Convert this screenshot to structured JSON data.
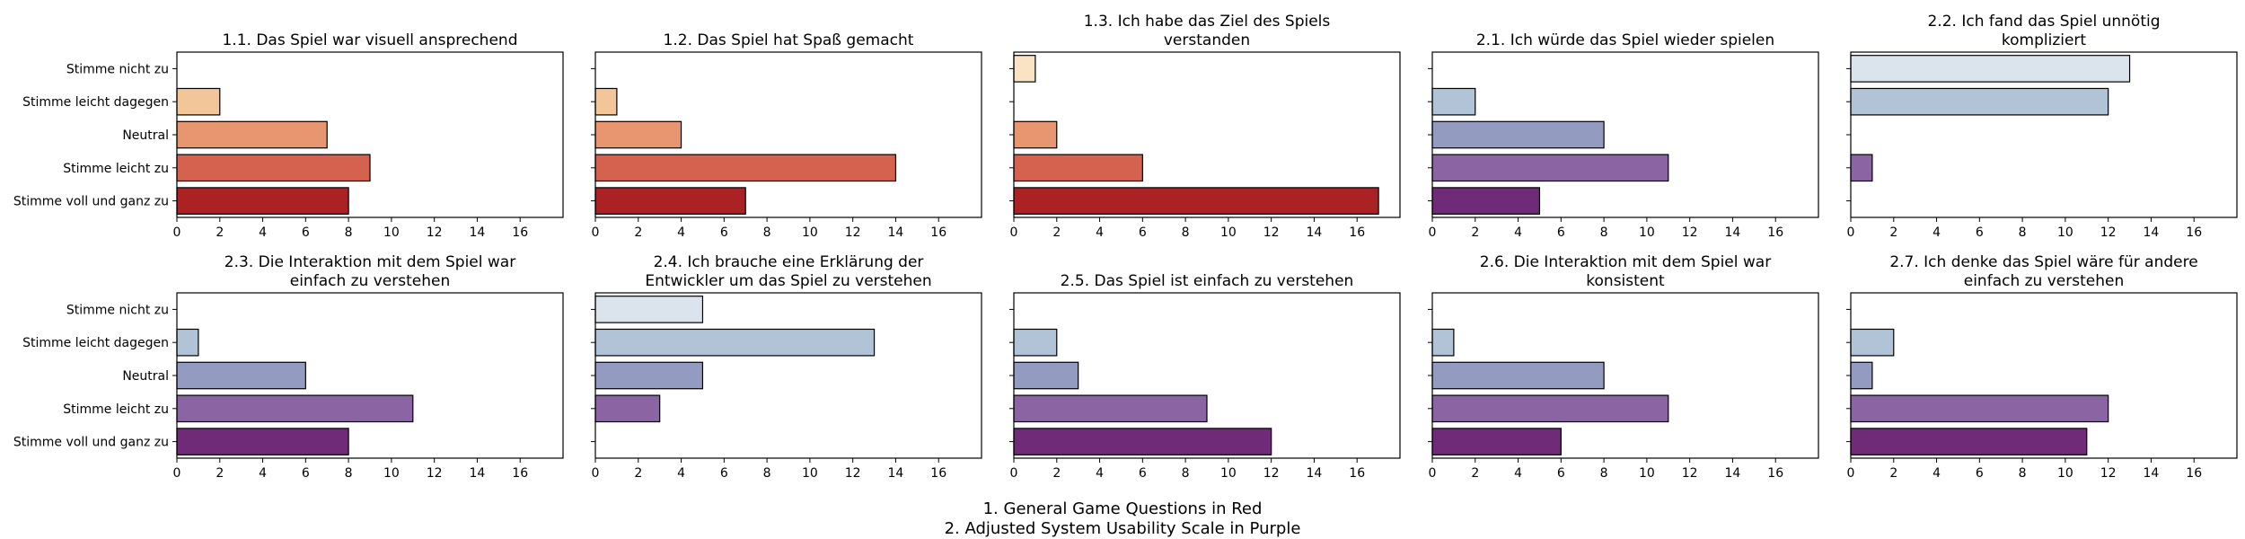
{
  "caption": {
    "line1": "1. General Game Questions in Red",
    "line2": "2. Adjusted System Usability Scale in Purple"
  },
  "chart_data": [
    {
      "type": "bar",
      "orientation": "horizontal",
      "title": "1.1. Das Spiel war visuell ansprechend",
      "categories": [
        "Stimme nicht zu",
        "Stimme leicht dagegen",
        "Neutral",
        "Stimme leicht zu",
        "Stimme voll und ganz zu"
      ],
      "values": [
        0,
        2,
        7,
        9,
        8
      ],
      "colors": [
        "#fae3c4",
        "#f3c69a",
        "#e8966f",
        "#d4624f",
        "#aa2224"
      ],
      "xlim": [
        0,
        18
      ],
      "xticks": [
        0,
        2,
        4,
        6,
        8,
        10,
        12,
        14,
        16
      ]
    },
    {
      "type": "bar",
      "orientation": "horizontal",
      "title": "1.2. Das Spiel hat Spaß gemacht",
      "categories": [
        "Stimme nicht zu",
        "Stimme leicht dagegen",
        "Neutral",
        "Stimme leicht zu",
        "Stimme voll und ganz zu"
      ],
      "values": [
        0,
        1,
        4,
        14,
        7
      ],
      "colors": [
        "#fae3c4",
        "#f3c69a",
        "#e8966f",
        "#d4624f",
        "#aa2224"
      ],
      "xlim": [
        0,
        18
      ],
      "xticks": [
        0,
        2,
        4,
        6,
        8,
        10,
        12,
        14,
        16
      ]
    },
    {
      "type": "bar",
      "orientation": "horizontal",
      "title": "1.3. Ich habe das Ziel des Spiels\nverstanden",
      "categories": [
        "Stimme nicht zu",
        "Stimme leicht dagegen",
        "Neutral",
        "Stimme leicht zu",
        "Stimme voll und ganz zu"
      ],
      "values": [
        1,
        0,
        2,
        6,
        17
      ],
      "colors": [
        "#fae3c4",
        "#f3c69a",
        "#e8966f",
        "#d4624f",
        "#aa2224"
      ],
      "xlim": [
        0,
        18
      ],
      "xticks": [
        0,
        2,
        4,
        6,
        8,
        10,
        12,
        14,
        16
      ]
    },
    {
      "type": "bar",
      "orientation": "horizontal",
      "title": "2.1. Ich würde das Spiel wieder spielen",
      "categories": [
        "Stimme nicht zu",
        "Stimme leicht dagegen",
        "Neutral",
        "Stimme leicht zu",
        "Stimme voll und ganz zu"
      ],
      "values": [
        0,
        2,
        8,
        11,
        5
      ],
      "colors": [
        "#dbe4ed",
        "#b1c4d7",
        "#949bc1",
        "#8a64a3",
        "#6f2a78"
      ],
      "xlim": [
        0,
        18
      ],
      "xticks": [
        0,
        2,
        4,
        6,
        8,
        10,
        12,
        14,
        16
      ]
    },
    {
      "type": "bar",
      "orientation": "horizontal",
      "title": "2.2. Ich fand das Spiel unnötig\nkompliziert",
      "categories": [
        "Stimme nicht zu",
        "Stimme leicht dagegen",
        "Neutral",
        "Stimme leicht zu",
        "Stimme voll und ganz zu"
      ],
      "values": [
        13,
        12,
        0,
        1,
        0
      ],
      "colors": [
        "#dbe4ed",
        "#b1c4d7",
        "#949bc1",
        "#8a64a3",
        "#6f2a78"
      ],
      "xlim": [
        0,
        18
      ],
      "xticks": [
        0,
        2,
        4,
        6,
        8,
        10,
        12,
        14,
        16
      ]
    },
    {
      "type": "bar",
      "orientation": "horizontal",
      "title": "2.3. Die Interaktion mit dem Spiel war\neinfach zu verstehen",
      "categories": [
        "Stimme nicht zu",
        "Stimme leicht dagegen",
        "Neutral",
        "Stimme leicht zu",
        "Stimme voll und ganz zu"
      ],
      "values": [
        0,
        1,
        6,
        11,
        8
      ],
      "colors": [
        "#dbe4ed",
        "#b1c4d7",
        "#949bc1",
        "#8a64a3",
        "#6f2a78"
      ],
      "xlim": [
        0,
        18
      ],
      "xticks": [
        0,
        2,
        4,
        6,
        8,
        10,
        12,
        14,
        16
      ]
    },
    {
      "type": "bar",
      "orientation": "horizontal",
      "title": "2.4. Ich brauche eine Erklärung der\nEntwickler um das Spiel zu verstehen",
      "categories": [
        "Stimme nicht zu",
        "Stimme leicht dagegen",
        "Neutral",
        "Stimme leicht zu",
        "Stimme voll und ganz zu"
      ],
      "values": [
        5,
        13,
        5,
        3,
        0
      ],
      "colors": [
        "#dbe4ed",
        "#b1c4d7",
        "#949bc1",
        "#8a64a3",
        "#6f2a78"
      ],
      "xlim": [
        0,
        18
      ],
      "xticks": [
        0,
        2,
        4,
        6,
        8,
        10,
        12,
        14,
        16
      ]
    },
    {
      "type": "bar",
      "orientation": "horizontal",
      "title": "2.5. Das Spiel ist einfach zu verstehen",
      "categories": [
        "Stimme nicht zu",
        "Stimme leicht dagegen",
        "Neutral",
        "Stimme leicht zu",
        "Stimme voll und ganz zu"
      ],
      "values": [
        0,
        2,
        3,
        9,
        12
      ],
      "colors": [
        "#dbe4ed",
        "#b1c4d7",
        "#949bc1",
        "#8a64a3",
        "#6f2a78"
      ],
      "xlim": [
        0,
        18
      ],
      "xticks": [
        0,
        2,
        4,
        6,
        8,
        10,
        12,
        14,
        16
      ]
    },
    {
      "type": "bar",
      "orientation": "horizontal",
      "title": "2.6. Die Interaktion mit dem Spiel war\nkonsistent",
      "categories": [
        "Stimme nicht zu",
        "Stimme leicht dagegen",
        "Neutral",
        "Stimme leicht zu",
        "Stimme voll und ganz zu"
      ],
      "values": [
        0,
        1,
        8,
        11,
        6
      ],
      "colors": [
        "#dbe4ed",
        "#b1c4d7",
        "#949bc1",
        "#8a64a3",
        "#6f2a78"
      ],
      "xlim": [
        0,
        18
      ],
      "xticks": [
        0,
        2,
        4,
        6,
        8,
        10,
        12,
        14,
        16
      ]
    },
    {
      "type": "bar",
      "orientation": "horizontal",
      "title": "2.7. Ich denke das Spiel wäre für andere\neinfach zu verstehen",
      "categories": [
        "Stimme nicht zu",
        "Stimme leicht dagegen",
        "Neutral",
        "Stimme leicht zu",
        "Stimme voll und ganz zu"
      ],
      "values": [
        0,
        2,
        1,
        12,
        11
      ],
      "colors": [
        "#dbe4ed",
        "#b1c4d7",
        "#949bc1",
        "#8a64a3",
        "#6f2a78"
      ],
      "xlim": [
        0,
        18
      ],
      "xticks": [
        0,
        2,
        4,
        6,
        8,
        10,
        12,
        14,
        16
      ]
    }
  ]
}
